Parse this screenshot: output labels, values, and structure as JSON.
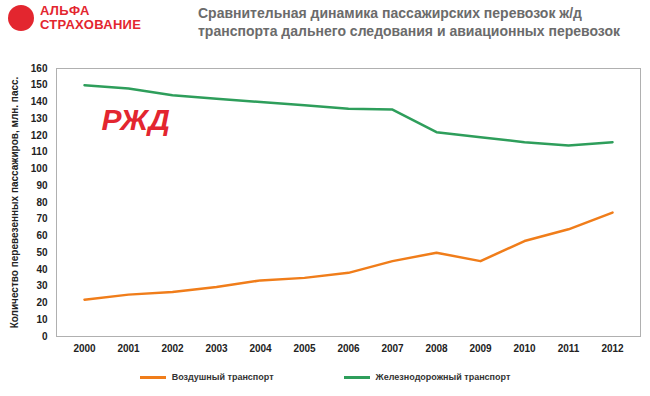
{
  "chart_data": {
    "type": "line",
    "logo": "АЛЬФА СТРАХОВАНИЕ",
    "title": "Сравнительная динамика пассажирских перевозок ж/д транспорта дальнего следования и авиационных перевозок",
    "annotations": [
      "РЖД"
    ],
    "y_label": "Количество перевезенных пассажиров, млн. пасс.",
    "categories": [
      "2000",
      "2001",
      "2002",
      "2003",
      "2004",
      "2005",
      "2006",
      "2007",
      "2008",
      "2009",
      "2010",
      "2011",
      "2012"
    ],
    "series": [
      {
        "name": "Воздушный транспорт",
        "color": "#f07d1a",
        "values": [
          22,
          25,
          26.5,
          29.5,
          33.5,
          35,
          38,
          45,
          50,
          45,
          57,
          64,
          74
        ]
      },
      {
        "name": "Железнодорожный транспорт",
        "color": "#2e9e5b",
        "values": [
          150,
          148,
          144,
          142,
          140,
          138,
          136,
          135.5,
          122,
          119,
          116,
          114,
          116
        ]
      }
    ],
    "ylim": [
      0,
      160
    ],
    "yticks": [
      0,
      10,
      20,
      30,
      40,
      50,
      60,
      70,
      80,
      90,
      100,
      110,
      120,
      130,
      140,
      150,
      160
    ],
    "grid": false,
    "legend": "bottom"
  }
}
